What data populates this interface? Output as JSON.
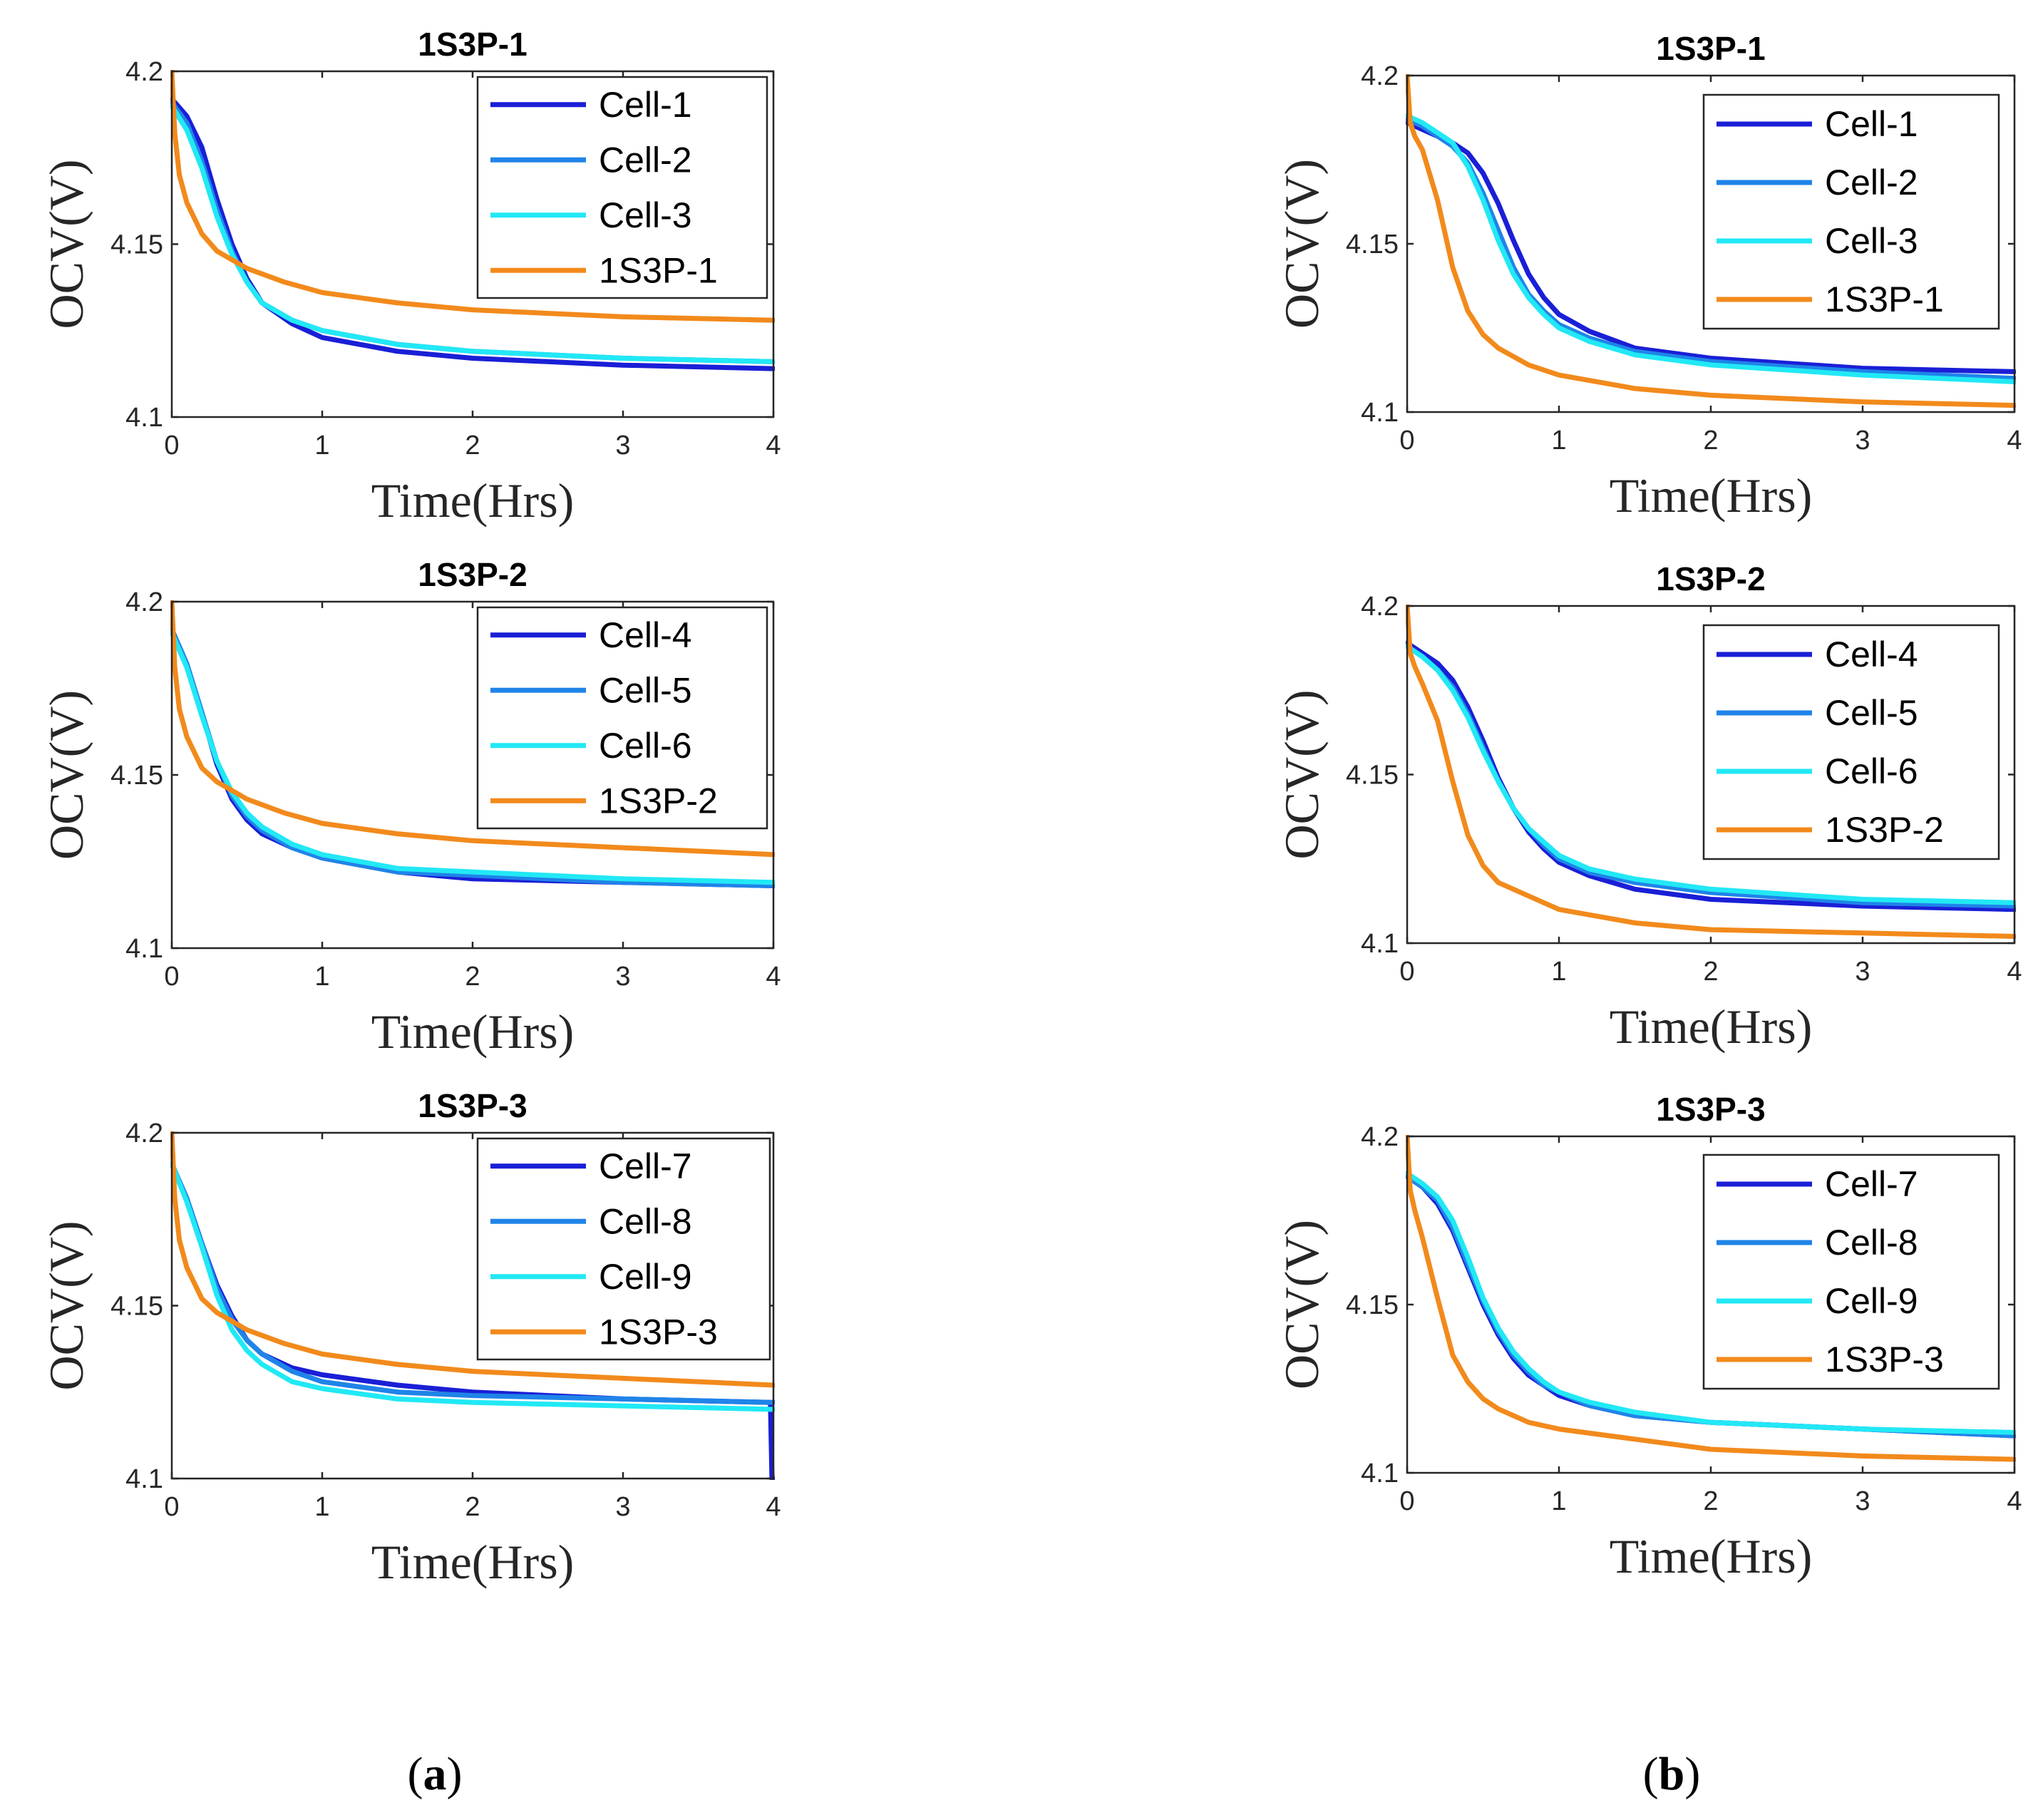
{
  "captions": {
    "a_open": "(",
    "a_letter": "a",
    "a_close": ")",
    "b_open": "(",
    "b_letter": "b",
    "b_close": ")"
  },
  "chart_data": [
    {
      "type": "line",
      "title": "1S3P-1",
      "xlabel": "Time(Hrs)",
      "ylabel": "OCV(V)",
      "xlim": [
        0,
        4
      ],
      "ylim": [
        4.1,
        4.2
      ],
      "xticks": [
        "0",
        "1",
        "2",
        "3",
        "4"
      ],
      "yticks": [
        "4.1",
        "4.15",
        "4.2"
      ],
      "legend": "top-right",
      "series": [
        {
          "name": "Cell-1",
          "color": "#1a1fd6",
          "x": [
            0,
            0.1,
            0.2,
            0.3,
            0.4,
            0.5,
            0.6,
            0.8,
            1.0,
            1.5,
            2.0,
            3.0,
            4.0
          ],
          "y": [
            4.192,
            4.187,
            4.178,
            4.163,
            4.15,
            4.14,
            4.133,
            4.127,
            4.123,
            4.119,
            4.117,
            4.115,
            4.114
          ]
        },
        {
          "name": "Cell-2",
          "color": "#1f84e8",
          "x": [
            0,
            0.1,
            0.2,
            0.3,
            0.4,
            0.5,
            0.6,
            0.8,
            1.0,
            1.5,
            2.0,
            3.0,
            4.0
          ],
          "y": [
            4.191,
            4.185,
            4.174,
            4.16,
            4.148,
            4.139,
            4.133,
            4.128,
            4.125,
            4.121,
            4.119,
            4.117,
            4.116
          ]
        },
        {
          "name": "Cell-3",
          "color": "#22e8f5",
          "x": [
            0,
            0.1,
            0.2,
            0.3,
            0.4,
            0.5,
            0.6,
            0.8,
            1.0,
            1.5,
            2.0,
            3.0,
            4.0
          ],
          "y": [
            4.19,
            4.183,
            4.172,
            4.158,
            4.147,
            4.139,
            4.133,
            4.128,
            4.125,
            4.121,
            4.119,
            4.117,
            4.116
          ]
        },
        {
          "name": "1S3P-1",
          "color": "#f28a1c",
          "x": [
            0,
            0.02,
            0.05,
            0.1,
            0.2,
            0.3,
            0.5,
            0.75,
            1.0,
            1.5,
            2.0,
            3.0,
            4.0
          ],
          "y": [
            4.2,
            4.182,
            4.17,
            4.162,
            4.153,
            4.148,
            4.143,
            4.139,
            4.136,
            4.133,
            4.131,
            4.129,
            4.128
          ]
        }
      ]
    },
    {
      "type": "line",
      "title": "1S3P-2",
      "xlabel": "Time(Hrs)",
      "ylabel": "OCV(V)",
      "xlim": [
        0,
        4
      ],
      "ylim": [
        4.1,
        4.2
      ],
      "xticks": [
        "0",
        "1",
        "2",
        "3",
        "4"
      ],
      "yticks": [
        "4.1",
        "4.15",
        "4.2"
      ],
      "legend": "top-right",
      "series": [
        {
          "name": "Cell-4",
          "color": "#1a1fd6",
          "x": [
            0,
            0.1,
            0.2,
            0.3,
            0.4,
            0.5,
            0.6,
            0.8,
            1.0,
            1.5,
            2.0,
            3.0,
            4.0
          ],
          "y": [
            4.192,
            4.182,
            4.168,
            4.153,
            4.143,
            4.137,
            4.133,
            4.129,
            4.126,
            4.122,
            4.12,
            4.119,
            4.118
          ]
        },
        {
          "name": "Cell-5",
          "color": "#1f84e8",
          "x": [
            0,
            0.1,
            0.2,
            0.3,
            0.4,
            0.5,
            0.6,
            0.8,
            1.0,
            1.5,
            2.0,
            3.0,
            4.0
          ],
          "y": [
            4.192,
            4.182,
            4.168,
            4.154,
            4.144,
            4.138,
            4.134,
            4.129,
            4.126,
            4.122,
            4.121,
            4.119,
            4.118
          ]
        },
        {
          "name": "Cell-6",
          "color": "#22e8f5",
          "x": [
            0,
            0.1,
            0.2,
            0.3,
            0.4,
            0.5,
            0.6,
            0.8,
            1.0,
            1.5,
            2.0,
            3.0,
            4.0
          ],
          "y": [
            4.191,
            4.181,
            4.167,
            4.154,
            4.145,
            4.139,
            4.135,
            4.13,
            4.127,
            4.123,
            4.122,
            4.12,
            4.119
          ]
        },
        {
          "name": "1S3P-2",
          "color": "#f28a1c",
          "x": [
            0,
            0.02,
            0.05,
            0.1,
            0.2,
            0.3,
            0.5,
            0.75,
            1.0,
            1.5,
            2.0,
            3.0,
            4.0
          ],
          "y": [
            4.2,
            4.181,
            4.169,
            4.161,
            4.152,
            4.148,
            4.143,
            4.139,
            4.136,
            4.133,
            4.131,
            4.129,
            4.127
          ]
        }
      ]
    },
    {
      "type": "line",
      "title": "1S3P-3",
      "xlabel": "Time(Hrs)",
      "ylabel": "OCV(V)",
      "xlim": [
        0,
        4
      ],
      "ylim": [
        4.1,
        4.2
      ],
      "xticks": [
        "0",
        "1",
        "2",
        "3",
        "4"
      ],
      "yticks": [
        "4.1",
        "4.15",
        "4.2"
      ],
      "legend": "top-right",
      "series": [
        {
          "name": "Cell-7",
          "color": "#1a1fd6",
          "x": [
            0,
            0.1,
            0.2,
            0.3,
            0.4,
            0.5,
            0.6,
            0.8,
            1.0,
            1.5,
            2.0,
            3.0,
            3.98,
            3.99,
            4.0
          ],
          "y": [
            4.191,
            4.181,
            4.168,
            4.156,
            4.147,
            4.14,
            4.136,
            4.132,
            4.13,
            4.127,
            4.125,
            4.123,
            4.122,
            4.1,
            4.1
          ]
        },
        {
          "name": "Cell-8",
          "color": "#1f84e8",
          "x": [
            0,
            0.1,
            0.2,
            0.3,
            0.4,
            0.5,
            0.6,
            0.8,
            1.0,
            1.5,
            2.0,
            3.0,
            4.0
          ],
          "y": [
            4.191,
            4.181,
            4.168,
            4.155,
            4.146,
            4.14,
            4.136,
            4.131,
            4.128,
            4.125,
            4.124,
            4.123,
            4.122
          ]
        },
        {
          "name": "Cell-9",
          "color": "#22e8f5",
          "x": [
            0,
            0.1,
            0.2,
            0.3,
            0.4,
            0.5,
            0.6,
            0.8,
            1.0,
            1.5,
            2.0,
            3.0,
            4.0
          ],
          "y": [
            4.191,
            4.18,
            4.167,
            4.153,
            4.143,
            4.137,
            4.133,
            4.128,
            4.126,
            4.123,
            4.122,
            4.121,
            4.12
          ]
        },
        {
          "name": "1S3P-3",
          "color": "#f28a1c",
          "x": [
            0,
            0.02,
            0.05,
            0.1,
            0.2,
            0.3,
            0.5,
            0.75,
            1.0,
            1.5,
            2.0,
            3.0,
            4.0
          ],
          "y": [
            4.2,
            4.181,
            4.169,
            4.161,
            4.152,
            4.148,
            4.143,
            4.139,
            4.136,
            4.133,
            4.131,
            4.129,
            4.127
          ]
        }
      ]
    },
    {
      "type": "line",
      "title": "1S3P-1",
      "xlabel": "Time(Hrs)",
      "ylabel": "OCV(V)",
      "xlim": [
        0,
        4
      ],
      "ylim": [
        4.1,
        4.2
      ],
      "xticks": [
        "0",
        "1",
        "2",
        "3",
        "4"
      ],
      "yticks": [
        "4.1",
        "4.15",
        "4.2"
      ],
      "legend": "top-right",
      "series": [
        {
          "name": "Cell-1",
          "color": "#1a1fd6",
          "x": [
            0,
            0.1,
            0.2,
            0.3,
            0.4,
            0.5,
            0.6,
            0.7,
            0.8,
            0.9,
            1.0,
            1.2,
            1.5,
            2.0,
            3.0,
            4.0
          ],
          "y": [
            4.186,
            4.184,
            4.182,
            4.18,
            4.177,
            4.171,
            4.162,
            4.151,
            4.141,
            4.134,
            4.129,
            4.124,
            4.119,
            4.116,
            4.113,
            4.112
          ]
        },
        {
          "name": "Cell-2",
          "color": "#1f84e8",
          "x": [
            0,
            0.1,
            0.2,
            0.3,
            0.4,
            0.5,
            0.6,
            0.7,
            0.8,
            0.9,
            1.0,
            1.2,
            1.5,
            2.0,
            3.0,
            4.0
          ],
          "y": [
            4.187,
            4.185,
            4.182,
            4.179,
            4.174,
            4.165,
            4.154,
            4.143,
            4.135,
            4.13,
            4.126,
            4.122,
            4.118,
            4.115,
            4.112,
            4.11
          ]
        },
        {
          "name": "Cell-3",
          "color": "#22e8f5",
          "x": [
            0,
            0.1,
            0.2,
            0.3,
            0.4,
            0.5,
            0.6,
            0.7,
            0.8,
            0.9,
            1.0,
            1.2,
            1.5,
            2.0,
            3.0,
            4.0
          ],
          "y": [
            4.188,
            4.186,
            4.183,
            4.18,
            4.173,
            4.163,
            4.151,
            4.141,
            4.134,
            4.129,
            4.125,
            4.121,
            4.117,
            4.114,
            4.111,
            4.109
          ]
        },
        {
          "name": "1S3P-1",
          "color": "#f28a1c",
          "x": [
            0,
            0.02,
            0.05,
            0.1,
            0.2,
            0.3,
            0.4,
            0.5,
            0.6,
            0.8,
            1.0,
            1.5,
            2.0,
            3.0,
            4.0
          ],
          "y": [
            4.2,
            4.186,
            4.182,
            4.178,
            4.163,
            4.143,
            4.13,
            4.123,
            4.119,
            4.114,
            4.111,
            4.107,
            4.105,
            4.103,
            4.102
          ]
        }
      ]
    },
    {
      "type": "line",
      "title": "1S3P-2",
      "xlabel": "Time(Hrs)",
      "ylabel": "OCV(V)",
      "xlim": [
        0,
        4
      ],
      "ylim": [
        4.1,
        4.2
      ],
      "xticks": [
        "0",
        "1",
        "2",
        "3",
        "4"
      ],
      "yticks": [
        "4.1",
        "4.15",
        "4.2"
      ],
      "legend": "top-right",
      "series": [
        {
          "name": "Cell-4",
          "color": "#1a1fd6",
          "x": [
            0,
            0.1,
            0.2,
            0.3,
            0.4,
            0.5,
            0.6,
            0.7,
            0.8,
            0.9,
            1.0,
            1.2,
            1.5,
            2.0,
            3.0,
            4.0
          ],
          "y": [
            4.189,
            4.186,
            4.183,
            4.178,
            4.17,
            4.16,
            4.149,
            4.14,
            4.133,
            4.128,
            4.124,
            4.12,
            4.116,
            4.113,
            4.111,
            4.11
          ]
        },
        {
          "name": "Cell-5",
          "color": "#1f84e8",
          "x": [
            0,
            0.1,
            0.2,
            0.3,
            0.4,
            0.5,
            0.6,
            0.7,
            0.8,
            0.9,
            1.0,
            1.2,
            1.5,
            2.0,
            3.0,
            4.0
          ],
          "y": [
            4.188,
            4.185,
            4.181,
            4.176,
            4.168,
            4.158,
            4.148,
            4.14,
            4.134,
            4.129,
            4.125,
            4.121,
            4.118,
            4.115,
            4.112,
            4.111
          ]
        },
        {
          "name": "Cell-6",
          "color": "#22e8f5",
          "x": [
            0,
            0.1,
            0.2,
            0.3,
            0.4,
            0.5,
            0.6,
            0.7,
            0.8,
            0.9,
            1.0,
            1.2,
            1.5,
            2.0,
            3.0,
            4.0
          ],
          "y": [
            4.188,
            4.185,
            4.181,
            4.175,
            4.167,
            4.157,
            4.148,
            4.14,
            4.134,
            4.13,
            4.126,
            4.122,
            4.119,
            4.116,
            4.113,
            4.112
          ]
        },
        {
          "name": "1S3P-2",
          "color": "#f28a1c",
          "x": [
            0,
            0.02,
            0.05,
            0.1,
            0.2,
            0.3,
            0.4,
            0.5,
            0.6,
            0.8,
            1.0,
            1.5,
            2.0,
            3.0,
            4.0
          ],
          "y": [
            4.2,
            4.186,
            4.182,
            4.177,
            4.166,
            4.148,
            4.132,
            4.123,
            4.118,
            4.114,
            4.11,
            4.106,
            4.104,
            4.103,
            4.102
          ]
        }
      ]
    },
    {
      "type": "line",
      "title": "1S3P-3",
      "xlabel": "Time(Hrs)",
      "ylabel": "OCV(V)",
      "xlim": [
        0,
        4
      ],
      "ylim": [
        4.1,
        4.2
      ],
      "xticks": [
        "0",
        "1",
        "2",
        "3",
        "4"
      ],
      "yticks": [
        "4.1",
        "4.15",
        "4.2"
      ],
      "legend": "top-right",
      "series": [
        {
          "name": "Cell-7",
          "color": "#1a1fd6",
          "x": [
            0,
            0.1,
            0.2,
            0.3,
            0.4,
            0.5,
            0.6,
            0.7,
            0.8,
            0.9,
            1.0,
            1.2,
            1.5,
            2.0,
            3.0,
            4.0
          ],
          "y": [
            4.188,
            4.185,
            4.18,
            4.172,
            4.161,
            4.15,
            4.141,
            4.134,
            4.129,
            4.126,
            4.123,
            4.12,
            4.117,
            4.115,
            4.113,
            4.111
          ]
        },
        {
          "name": "Cell-8",
          "color": "#1f84e8",
          "x": [
            0,
            0.1,
            0.2,
            0.3,
            0.4,
            0.5,
            0.6,
            0.7,
            0.8,
            0.9,
            1.0,
            1.2,
            1.5,
            2.0,
            3.0,
            4.0
          ],
          "y": [
            4.188,
            4.185,
            4.181,
            4.173,
            4.162,
            4.151,
            4.142,
            4.135,
            4.13,
            4.126,
            4.124,
            4.12,
            4.117,
            4.115,
            4.113,
            4.111
          ]
        },
        {
          "name": "Cell-9",
          "color": "#22e8f5",
          "x": [
            0,
            0.1,
            0.2,
            0.3,
            0.4,
            0.5,
            0.6,
            0.7,
            0.8,
            0.9,
            1.0,
            1.2,
            1.5,
            2.0,
            3.0,
            4.0
          ],
          "y": [
            4.189,
            4.186,
            4.182,
            4.175,
            4.164,
            4.152,
            4.143,
            4.136,
            4.131,
            4.127,
            4.124,
            4.121,
            4.118,
            4.115,
            4.113,
            4.112
          ]
        },
        {
          "name": "1S3P-3",
          "color": "#f28a1c",
          "x": [
            0,
            0.02,
            0.05,
            0.1,
            0.2,
            0.3,
            0.4,
            0.5,
            0.6,
            0.8,
            1.0,
            1.5,
            2.0,
            3.0,
            4.0
          ],
          "y": [
            4.2,
            4.184,
            4.178,
            4.17,
            4.152,
            4.135,
            4.127,
            4.122,
            4.119,
            4.115,
            4.113,
            4.11,
            4.107,
            4.105,
            4.104
          ]
        }
      ]
    }
  ]
}
